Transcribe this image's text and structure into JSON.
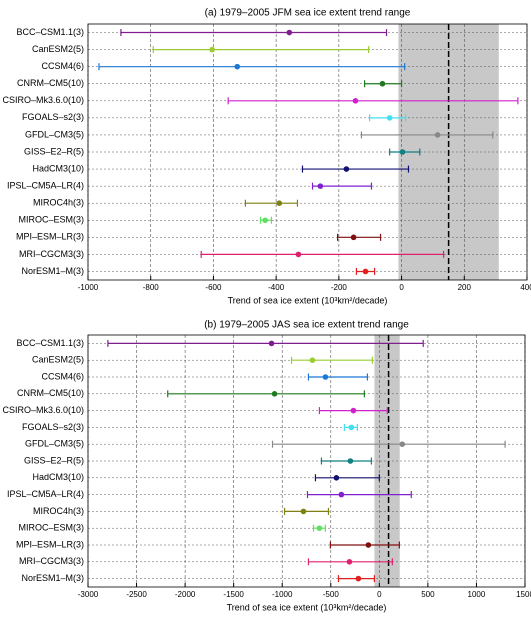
{
  "chart_data": [
    {
      "type": "errorbar",
      "title": "(a) 1979–2005 JFM sea ice extent trend range",
      "x_label": "Trend of sea ice extent (10³km²/decade)",
      "categories": [
        "BCC–CSM1.1(3)",
        "CanESM2(5)",
        "CCSM4(6)",
        "CNRM–CM5(10)",
        "CSIRO–Mk3.6.0(10)",
        "FGOALS–s2(3)",
        "GFDL–CM3(5)",
        "GISS–E2–R(5)",
        "HadCM3(10)",
        "IPSL–CM5A–LR(4)",
        "MIROC4h(3)",
        "MIROC–ESM(3)",
        "MPI–ESM–LR(3)",
        "MRI–CGCM3(3)",
        "NorESM1–M(3)"
      ],
      "colors": [
        "#7f1f8f",
        "#9acd32",
        "#1a78d6",
        "#1f7a1f",
        "#d020d0",
        "#40e0f0",
        "#888888",
        "#108080",
        "#101070",
        "#8020d0",
        "#808010",
        "#60e060",
        "#801010",
        "#e0206f",
        "#e02020"
      ],
      "values": [
        -358,
        -604,
        -524,
        -61,
        -147,
        -38,
        115,
        3,
        -176,
        -259,
        -390,
        -435,
        -153,
        -329,
        -115
      ],
      "lower": [
        -895,
        -792,
        -965,
        -118,
        -553,
        -102,
        -128,
        -38,
        -316,
        -284,
        -498,
        -450,
        -204,
        -639,
        -144
      ],
      "upper": [
        -48,
        -105,
        10,
        0,
        371,
        13,
        291,
        58,
        22,
        -96,
        -332,
        -415,
        -67,
        134,
        -86
      ],
      "shade": [
        -10,
        310
      ],
      "shade_color": "#c8c8c8",
      "reference_line": 150,
      "xlim": [
        -1000,
        400
      ],
      "xticks": [
        -1000,
        -800,
        -600,
        -400,
        -200,
        0,
        200,
        400
      ],
      "grid": true
    },
    {
      "type": "errorbar",
      "title": "(b) 1979–2005 JAS sea ice extent trend range",
      "x_label": "Trend of sea ice extent (10³km²/decade)",
      "categories": [
        "BCC–CSM1.1(3)",
        "CanESM2(5)",
        "CCSM4(6)",
        "CNRM–CM5(10)",
        "CSIRO–Mk3.6.0(10)",
        "FGOALS–s2(3)",
        "GFDL–CM3(5)",
        "GISS–E2–R(5)",
        "HadCM3(10)",
        "IPSL–CM5A–LR(4)",
        "MIROC4h(3)",
        "MIROC–ESM(3)",
        "MPI–ESM–LR(3)",
        "MRI–CGCM3(3)",
        "NorESM1–M(3)"
      ],
      "colors": [
        "#7f1f8f",
        "#9acd32",
        "#1a78d6",
        "#1f7a1f",
        "#d020d0",
        "#40e0f0",
        "#888888",
        "#108080",
        "#101070",
        "#8020d0",
        "#808010",
        "#60e060",
        "#801010",
        "#e0206f",
        "#e02020"
      ],
      "values": [
        -1110,
        -689,
        -555,
        -1079,
        -267,
        -288,
        236,
        -298,
        -442,
        -391,
        -781,
        -617,
        -113,
        -308,
        -216
      ],
      "lower": [
        -2795,
        -904,
        -730,
        -2179,
        -617,
        -360,
        -1100,
        -596,
        -658,
        -740,
        -976,
        -678,
        -504,
        -730,
        -421
      ],
      "upper": [
        452,
        -72,
        -123,
        -154,
        82,
        -226,
        1295,
        -82,
        0,
        329,
        -524,
        -555,
        206,
        134,
        -51
      ],
      "shade": [
        -50,
        210
      ],
      "shade_color": "#c8c8c8",
      "reference_line": 95,
      "xlim": [
        -3000,
        1500
      ],
      "xticks": [
        -3000,
        -2500,
        -2000,
        -1500,
        -1000,
        -500,
        0,
        500,
        1000,
        1500
      ],
      "grid": true
    }
  ]
}
